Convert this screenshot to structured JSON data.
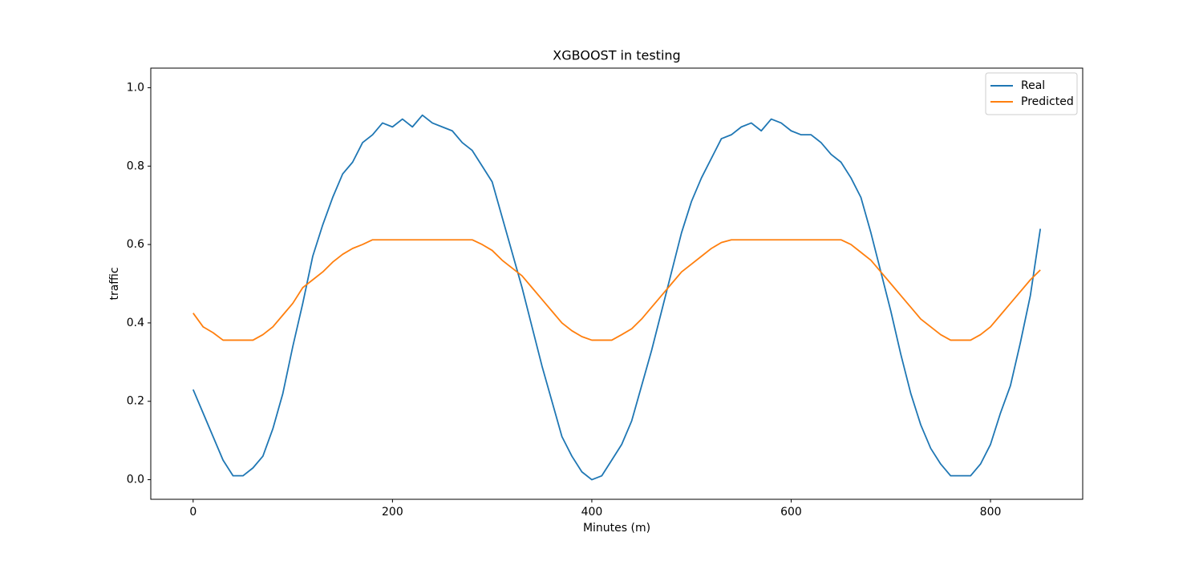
{
  "chart_data": {
    "type": "line",
    "title": "XGBOOST in testing",
    "x_label": "Minutes (m)",
    "y_label": "traffic",
    "x": [
      0,
      10,
      20,
      30,
      40,
      50,
      60,
      70,
      80,
      90,
      100,
      110,
      120,
      130,
      140,
      150,
      160,
      170,
      180,
      190,
      200,
      210,
      220,
      230,
      240,
      250,
      260,
      270,
      280,
      290,
      300,
      310,
      320,
      330,
      340,
      350,
      360,
      370,
      380,
      390,
      400,
      410,
      420,
      430,
      440,
      450,
      460,
      470,
      480,
      490,
      500,
      510,
      520,
      530,
      540,
      550,
      560,
      570,
      580,
      590,
      600,
      610,
      620,
      630,
      640,
      650,
      660,
      670,
      680,
      690,
      700,
      710,
      720,
      730,
      740,
      750,
      760,
      770,
      780,
      790,
      800,
      810,
      820,
      830,
      840,
      850
    ],
    "series": [
      {
        "name": "Real",
        "color": "#1f77b4",
        "values": [
          0.23,
          0.17,
          0.11,
          0.05,
          0.01,
          0.01,
          0.03,
          0.06,
          0.13,
          0.22,
          0.34,
          0.45,
          0.57,
          0.65,
          0.72,
          0.78,
          0.81,
          0.86,
          0.88,
          0.91,
          0.9,
          0.92,
          0.9,
          0.93,
          0.91,
          0.9,
          0.89,
          0.86,
          0.84,
          0.8,
          0.76,
          0.67,
          0.58,
          0.49,
          0.39,
          0.29,
          0.2,
          0.11,
          0.06,
          0.02,
          0.0,
          0.01,
          0.05,
          0.09,
          0.15,
          0.24,
          0.33,
          0.43,
          0.53,
          0.63,
          0.71,
          0.77,
          0.82,
          0.87,
          0.88,
          0.9,
          0.91,
          0.89,
          0.92,
          0.91,
          0.89,
          0.88,
          0.88,
          0.86,
          0.83,
          0.81,
          0.77,
          0.72,
          0.63,
          0.53,
          0.43,
          0.32,
          0.22,
          0.14,
          0.08,
          0.04,
          0.01,
          0.01,
          0.01,
          0.04,
          0.09,
          0.17,
          0.24,
          0.35,
          0.47,
          0.64
        ]
      },
      {
        "name": "Predicted",
        "color": "#ff7f0e",
        "values": [
          0.425,
          0.39,
          0.375,
          0.356,
          0.356,
          0.356,
          0.356,
          0.37,
          0.39,
          0.42,
          0.45,
          0.49,
          0.51,
          0.53,
          0.555,
          0.575,
          0.59,
          0.6,
          0.612,
          0.612,
          0.612,
          0.612,
          0.612,
          0.612,
          0.612,
          0.612,
          0.612,
          0.612,
          0.612,
          0.6,
          0.585,
          0.56,
          0.54,
          0.52,
          0.49,
          0.46,
          0.43,
          0.4,
          0.38,
          0.365,
          0.356,
          0.356,
          0.356,
          0.37,
          0.385,
          0.41,
          0.44,
          0.47,
          0.5,
          0.53,
          0.55,
          0.57,
          0.59,
          0.605,
          0.612,
          0.612,
          0.612,
          0.612,
          0.612,
          0.612,
          0.612,
          0.612,
          0.612,
          0.612,
          0.612,
          0.612,
          0.6,
          0.58,
          0.56,
          0.53,
          0.5,
          0.47,
          0.44,
          0.41,
          0.39,
          0.37,
          0.356,
          0.356,
          0.356,
          0.37,
          0.39,
          0.42,
          0.45,
          0.48,
          0.51,
          0.535
        ]
      }
    ],
    "xlim": [
      -42.5,
      892.5
    ],
    "ylim": [
      -0.05,
      1.05
    ],
    "xticks": [
      0,
      200,
      400,
      600,
      800
    ],
    "yticks": [
      {
        "value": 0,
        "label": "0.0"
      },
      0.2,
      0.4,
      0.6,
      0.8,
      {
        "value": 1,
        "label": "1.0"
      }
    ],
    "legend": "upper right"
  }
}
